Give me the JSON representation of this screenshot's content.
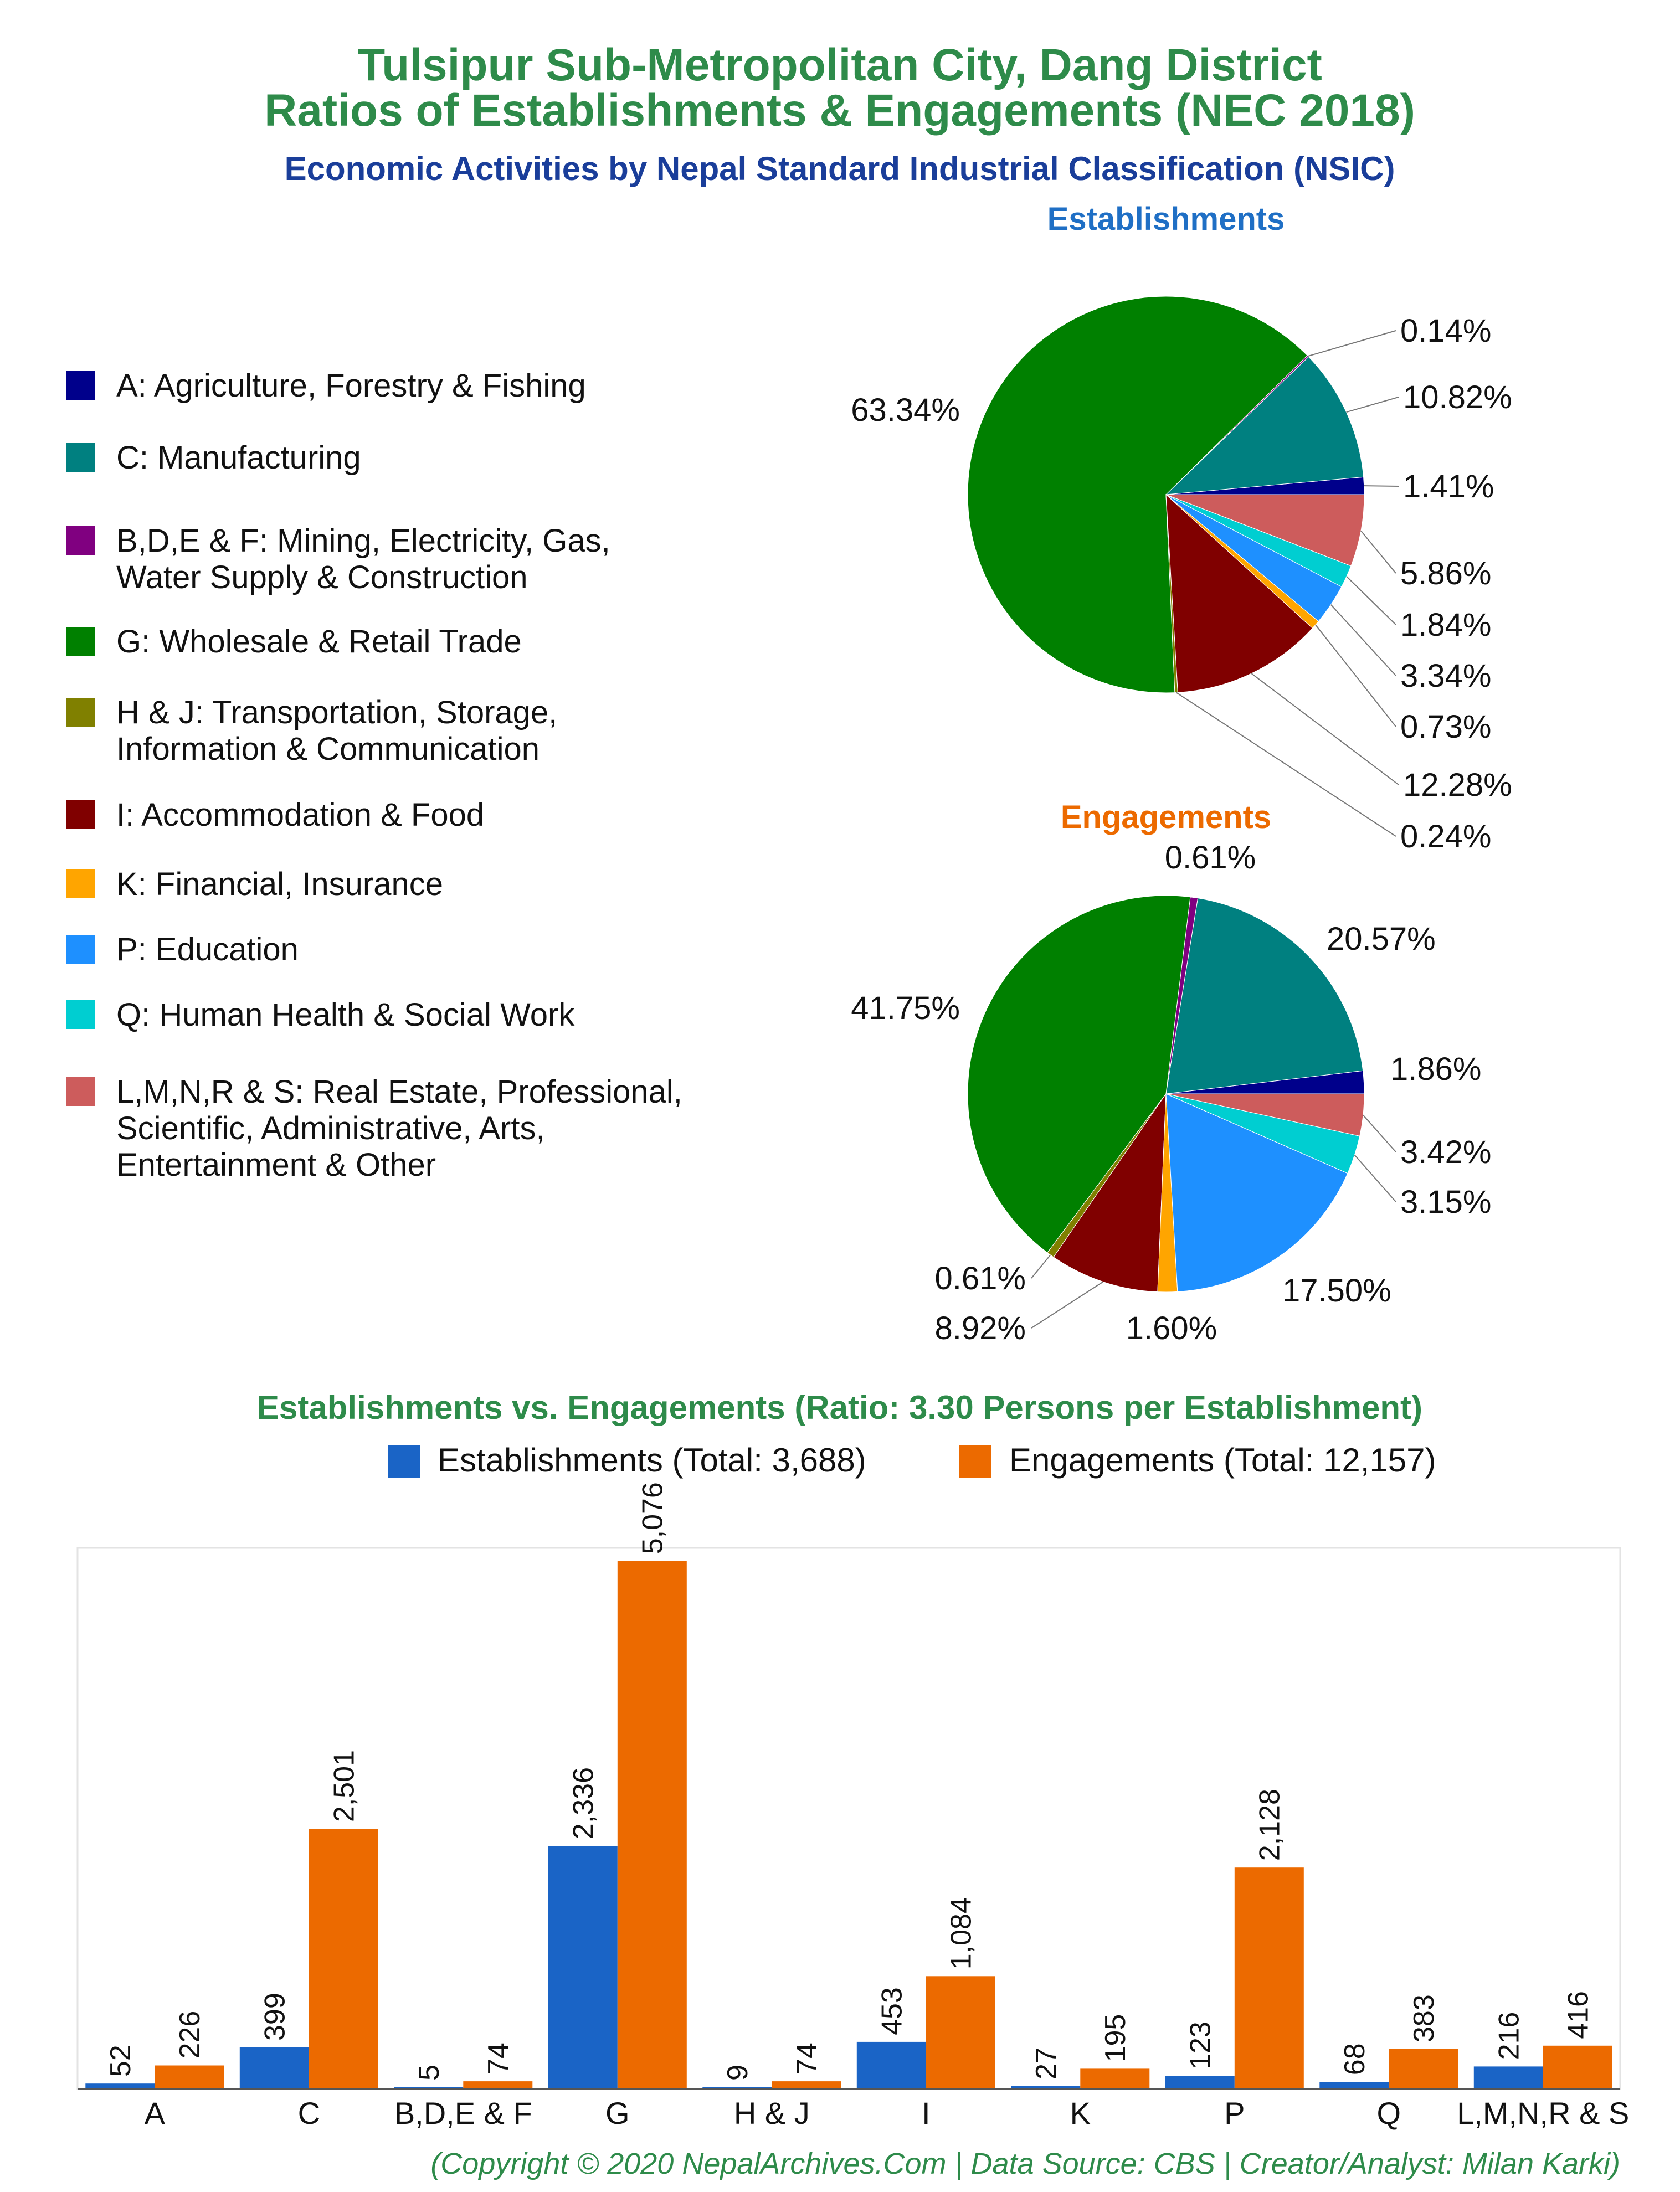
{
  "header": {
    "title_line1": "Tulsipur Sub-Metropolitan City, Dang District",
    "title_line2": "Ratios of Establishments & Engagements (NEC 2018)",
    "subtitle": "Economic Activities by Nepal Standard Industrial Classification (NSIC)"
  },
  "colors": {
    "title": "#2e8b4a",
    "subtitle": "#1a3e9a",
    "establishments_title": "#1f6fc5",
    "engagements_title": "#ec6a00",
    "bar_establishments": "#1a64c6",
    "bar_engagements": "#ec6a00"
  },
  "legend": [
    {
      "label_lines": [
        "A: Agriculture, Forestry & Fishing"
      ],
      "color": "#00008b"
    },
    {
      "label_lines": [
        "C: Manufacturing"
      ],
      "color": "#008080"
    },
    {
      "label_lines": [
        "B,D,E & F: Mining, Electricity, Gas,",
        "Water Supply & Construction"
      ],
      "color": "#800080"
    },
    {
      "label_lines": [
        "G: Wholesale & Retail Trade"
      ],
      "color": "#008000"
    },
    {
      "label_lines": [
        "H & J: Transportation, Storage,",
        "Information & Communication"
      ],
      "color": "#808000"
    },
    {
      "label_lines": [
        "I: Accommodation & Food"
      ],
      "color": "#800000"
    },
    {
      "label_lines": [
        "K: Financial, Insurance"
      ],
      "color": "#ffa500"
    },
    {
      "label_lines": [
        "P: Education"
      ],
      "color": "#1e90ff"
    },
    {
      "label_lines": [
        "Q: Human Health & Social Work"
      ],
      "color": "#00ced1"
    },
    {
      "label_lines": [
        "L,M,N,R & S: Real Estate, Professional,",
        "Scientific, Administrative, Arts,",
        "Entertainment & Other"
      ],
      "color": "#cd5c5c"
    }
  ],
  "chart_data": [
    {
      "type": "pie",
      "title": "Establishments",
      "labels": [
        "A",
        "C",
        "B,D,E & F",
        "G",
        "H & J",
        "I",
        "K",
        "P",
        "Q",
        "L,M,N,R & S"
      ],
      "values": [
        1.41,
        10.82,
        0.14,
        63.34,
        0.24,
        12.28,
        0.73,
        3.34,
        1.84,
        5.86
      ],
      "value_labels": [
        "1.41%",
        "10.82%",
        "0.14%",
        "63.34%",
        "0.24%",
        "12.28%",
        "0.73%",
        "3.34%",
        "1.84%",
        "5.86%"
      ]
    },
    {
      "type": "pie",
      "title": "Engagements",
      "labels": [
        "A",
        "C",
        "B,D,E & F",
        "G",
        "H & J",
        "I",
        "K",
        "P",
        "Q",
        "L,M,N,R & S"
      ],
      "values": [
        1.86,
        20.57,
        0.61,
        41.75,
        0.61,
        8.92,
        1.6,
        17.5,
        3.15,
        3.42
      ],
      "value_labels": [
        "1.86%",
        "20.57%",
        "0.61%",
        "41.75%",
        "0.61%",
        "8.92%",
        "1.60%",
        "17.50%",
        "3.15%",
        "3.42%"
      ]
    },
    {
      "type": "bar",
      "title": "Establishments vs. Engagements (Ratio: 3.30 Persons per Establishment)",
      "categories": [
        "A",
        "C",
        "B,D,E & F",
        "G",
        "H & J",
        "I",
        "K",
        "P",
        "Q",
        "L,M,N,R & S"
      ],
      "series": [
        {
          "name": "Establishments (Total: 3,688)",
          "values": [
            52,
            399,
            5,
            2336,
            9,
            453,
            27,
            123,
            68,
            216
          ],
          "value_labels": [
            "52",
            "399",
            "5",
            "2,336",
            "9",
            "453",
            "27",
            "123",
            "68",
            "216"
          ]
        },
        {
          "name": "Engagements (Total: 12,157)",
          "values": [
            226,
            2501,
            74,
            5076,
            74,
            1084,
            195,
            2128,
            383,
            416
          ],
          "value_labels": [
            "226",
            "2,501",
            "74",
            "5,076",
            "74",
            "1,084",
            "195",
            "2,128",
            "383",
            "416"
          ]
        }
      ],
      "ylim": [
        0,
        5200
      ],
      "legend_position": "top-right",
      "grid": false
    }
  ],
  "footer": "(Copyright © 2020 NepalArchives.Com | Data Source: CBS | Creator/Analyst: Milan Karki)"
}
